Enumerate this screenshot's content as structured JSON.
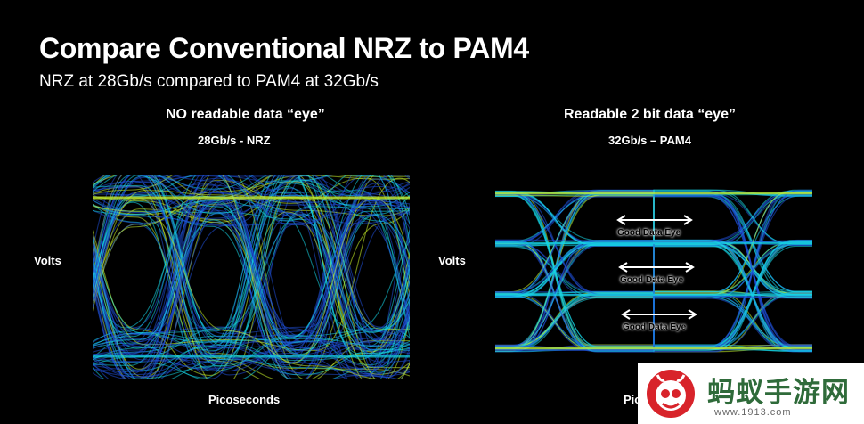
{
  "slide": {
    "title": "Compare Conventional NRZ to PAM4",
    "subtitle": "NRZ at 28Gb/s compared to PAM4 at 32Gb/s"
  },
  "left_panel": {
    "heading": "NO readable data “eye”",
    "rate": "28Gb/s - NRZ",
    "y_axis": "Volts",
    "x_axis": "Picoseconds"
  },
  "right_panel": {
    "heading": "Readable 2 bit data “eye”",
    "rate": "32Gb/s – PAM4",
    "y_axis": "Volts",
    "x_axis": "Pic",
    "eye_labels": [
      "Good Data Eye",
      "Good Data Eye",
      "Good Data Eye"
    ]
  },
  "watermark": {
    "text": "蚂蚁手游网",
    "url": "www.1913.com"
  },
  "colors": {
    "trace_low": "#1f4fd6",
    "trace_mid": "#15d5e6",
    "trace_high": "#c8f02a",
    "watermark_green": "#2f6b3a",
    "watermark_red": "#d8232a"
  }
}
